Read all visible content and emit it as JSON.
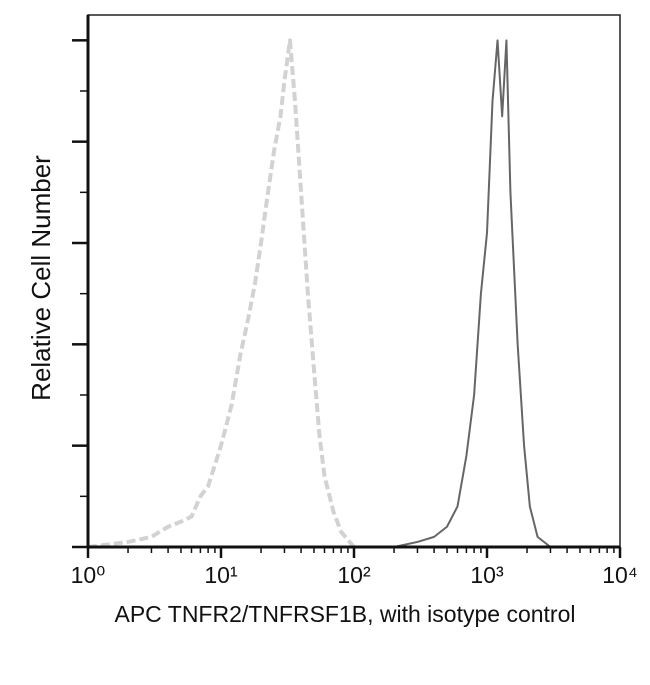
{
  "chart_data": {
    "type": "line",
    "x_label": "APC TNFR2/TNFRSF1B, with isotype control",
    "y_label": "Relative Cell Number",
    "xlog": true,
    "xlim": [
      1,
      10000
    ],
    "xticks": [
      {
        "value": 1,
        "label": "10⁰"
      },
      {
        "value": 10,
        "label": "10¹"
      },
      {
        "value": 100,
        "label": "10²"
      },
      {
        "value": 1000,
        "label": "10³"
      },
      {
        "value": 10000,
        "label": "10⁴"
      }
    ],
    "xminorticks": [
      2,
      3,
      4,
      5,
      6,
      7,
      8,
      9,
      20,
      30,
      40,
      50,
      60,
      70,
      80,
      90,
      200,
      300,
      400,
      500,
      600,
      700,
      800,
      900,
      2000,
      3000,
      4000,
      5000,
      6000,
      7000,
      8000,
      9000
    ],
    "ylim": [
      0,
      105
    ],
    "yticks": [
      0,
      20,
      40,
      60,
      80,
      100
    ],
    "yminorticks": [
      10,
      30,
      50,
      70,
      90
    ],
    "series": [
      {
        "color": "#d2d2d2",
        "linestyle": "dashed",
        "x": [
          1,
          2,
          3,
          4,
          5,
          6,
          7,
          8,
          10,
          12,
          14,
          16,
          18,
          20,
          22,
          25,
          28,
          30,
          33,
          36,
          40,
          45,
          50,
          55,
          60,
          70,
          80,
          100
        ],
        "values": [
          0,
          1,
          2,
          4,
          5,
          6,
          10,
          12,
          20,
          28,
          38,
          45,
          52,
          60,
          68,
          78,
          85,
          92,
          100,
          88,
          70,
          50,
          35,
          22,
          14,
          7,
          3,
          0
        ]
      },
      {
        "color": "#666666",
        "linestyle": "solid",
        "x": [
          200,
          300,
          400,
          500,
          600,
          700,
          800,
          900,
          1000,
          1100,
          1200,
          1300,
          1400,
          1500,
          1700,
          1900,
          2100,
          2400,
          3000
        ],
        "values": [
          0,
          1,
          2,
          4,
          8,
          18,
          30,
          50,
          62,
          88,
          100,
          85,
          100,
          70,
          40,
          20,
          8,
          2,
          0
        ]
      }
    ]
  }
}
